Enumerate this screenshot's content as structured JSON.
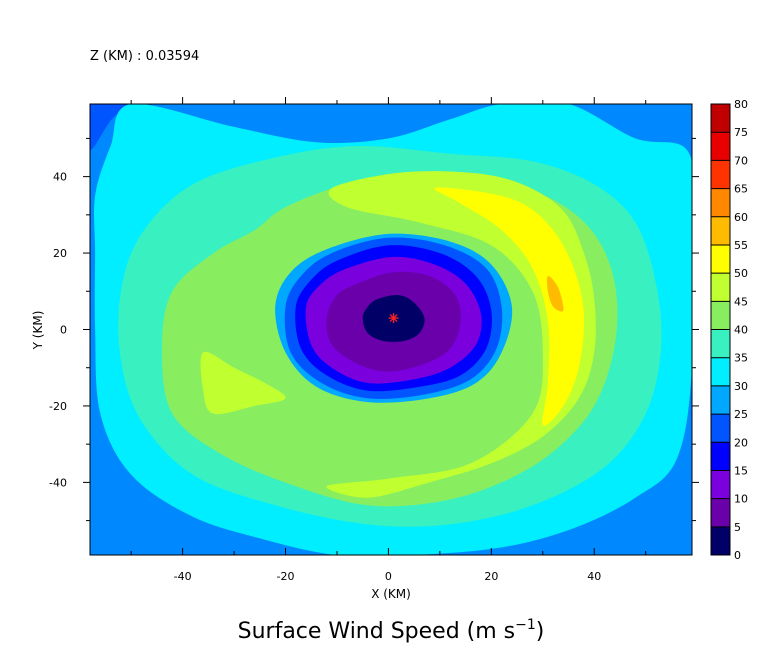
{
  "chart_data": {
    "type": "heatmap",
    "plot_type": "filled contour",
    "title": "Surface Wind Speed (m s",
    "title_superscript": "−1",
    "title_suffix": ")",
    "level_label": "Z (KM) : 0.03594",
    "xlabel": "X (KM)",
    "ylabel": "Y (KM)",
    "xlim": [
      -58,
      59
    ],
    "ylim": [
      -59,
      59
    ],
    "x_ticks": [
      -40,
      -20,
      0,
      20,
      40
    ],
    "y_ticks": [
      -40,
      -20,
      0,
      20,
      40
    ],
    "x_tick_labels": [
      "-40",
      "-20",
      "0",
      "20",
      "40"
    ],
    "y_tick_labels": [
      "-40",
      "-20",
      "0",
      "20",
      "40"
    ],
    "center_marker": {
      "x": 1,
      "y": 3,
      "symbol": "*",
      "color": "#ff2020"
    },
    "colorbar": {
      "levels": [
        0,
        5,
        10,
        15,
        20,
        25,
        30,
        35,
        40,
        45,
        50,
        55,
        60,
        65,
        70,
        75,
        80
      ],
      "labels": [
        "0",
        "5",
        "10",
        "15",
        "20",
        "25",
        "30",
        "35",
        "40",
        "45",
        "50",
        "55",
        "60",
        "65",
        "70",
        "75",
        "80"
      ],
      "colors": [
        "#000066",
        "#6a00aa",
        "#7a00dd",
        "#0000ff",
        "#0055ff",
        "#00a8ff",
        "#00eeff",
        "#38f0c0",
        "#88ee60",
        "#c0ff30",
        "#ffff00",
        "#ffbb00",
        "#ff8800",
        "#ff3300",
        "#e80000",
        "#c00000"
      ]
    },
    "regions": [
      {
        "speed_min": 20,
        "polygon": [
          [
            -58,
            47
          ],
          [
            -53,
            56
          ],
          [
            -46,
            59
          ],
          [
            -58,
            59
          ]
        ]
      },
      {
        "speed_min": 30,
        "polygon": [
          [
            -50,
            59
          ],
          [
            -30,
            53
          ],
          [
            -14,
            49
          ],
          [
            0,
            50
          ],
          [
            12,
            55
          ],
          [
            22,
            59
          ],
          [
            35,
            59
          ],
          [
            48,
            50
          ],
          [
            58,
            47
          ],
          [
            59,
            30
          ],
          [
            59,
            -10
          ],
          [
            56,
            -34
          ],
          [
            48,
            -44
          ],
          [
            36,
            -52
          ],
          [
            22,
            -57
          ],
          [
            5,
            -59
          ],
          [
            -10,
            -59
          ],
          [
            -24,
            -55
          ],
          [
            -38,
            -49
          ],
          [
            -50,
            -38
          ],
          [
            -56,
            -22
          ],
          [
            -57,
            0
          ],
          [
            -57,
            20
          ],
          [
            -57,
            35
          ],
          [
            -54,
            48
          ]
        ]
      },
      {
        "speed_min": 35,
        "polygon": [
          [
            -38,
            38
          ],
          [
            -22,
            45
          ],
          [
            -6,
            48
          ],
          [
            12,
            46
          ],
          [
            28,
            44
          ],
          [
            40,
            38
          ],
          [
            48,
            28
          ],
          [
            52,
            12
          ],
          [
            53,
            -5
          ],
          [
            50,
            -22
          ],
          [
            42,
            -36
          ],
          [
            28,
            -46
          ],
          [
            12,
            -51
          ],
          [
            -4,
            -51
          ],
          [
            -22,
            -46
          ],
          [
            -38,
            -38
          ],
          [
            -48,
            -24
          ],
          [
            -52,
            -8
          ],
          [
            -52,
            10
          ],
          [
            -48,
            25
          ]
        ]
      },
      {
        "speed_min": 40,
        "polygon": [
          [
            -20,
            32
          ],
          [
            -8,
            38
          ],
          [
            6,
            40
          ],
          [
            20,
            39
          ],
          [
            32,
            34
          ],
          [
            40,
            25
          ],
          [
            44,
            12
          ],
          [
            44,
            -4
          ],
          [
            40,
            -20
          ],
          [
            32,
            -32
          ],
          [
            22,
            -40
          ],
          [
            10,
            -45
          ],
          [
            -4,
            -46
          ],
          [
            -18,
            -41
          ],
          [
            -32,
            -33
          ],
          [
            -42,
            -22
          ],
          [
            -44,
            -5
          ],
          [
            -42,
            10
          ],
          [
            -34,
            20
          ],
          [
            -26,
            26
          ]
        ]
      },
      {
        "speed_min": 45,
        "polygon": [
          [
            -11,
            37
          ],
          [
            2,
            41
          ],
          [
            16,
            41
          ],
          [
            26,
            38
          ],
          [
            34,
            31
          ],
          [
            38,
            20
          ],
          [
            40,
            8
          ],
          [
            40,
            -6
          ],
          [
            37,
            -18
          ],
          [
            30,
            -28
          ],
          [
            20,
            -35
          ],
          [
            8,
            -40
          ],
          [
            -4,
            -44
          ],
          [
            -12,
            -41
          ],
          [
            0,
            -39
          ],
          [
            16,
            -35
          ],
          [
            28,
            -22
          ],
          [
            30,
            -6
          ],
          [
            28,
            10
          ],
          [
            20,
            22
          ],
          [
            6,
            28
          ],
          [
            -8,
            32
          ]
        ]
      },
      {
        "speed_min": 45,
        "polygon": [
          [
            -36,
            -6
          ],
          [
            -30,
            -10
          ],
          [
            -24,
            -14
          ],
          [
            -20,
            -18
          ],
          [
            -26,
            -20
          ],
          [
            -34,
            -22
          ],
          [
            -36,
            -16
          ]
        ]
      },
      {
        "speed_min": 50,
        "polygon": [
          [
            9,
            37
          ],
          [
            18,
            36
          ],
          [
            26,
            33
          ],
          [
            32,
            26
          ],
          [
            36,
            16
          ],
          [
            38,
            4
          ],
          [
            37,
            -10
          ],
          [
            34,
            -20
          ],
          [
            30,
            -25
          ],
          [
            31,
            -14
          ],
          [
            31,
            2
          ],
          [
            28,
            16
          ],
          [
            22,
            26
          ],
          [
            14,
            33
          ]
        ]
      },
      {
        "speed_min": 55,
        "polygon": [
          [
            31,
            14
          ],
          [
            33,
            11
          ],
          [
            34,
            5
          ],
          [
            32,
            6
          ],
          [
            31,
            10
          ]
        ]
      },
      {
        "speed_min": 25,
        "polygon": [
          [
            -12,
            21
          ],
          [
            0,
            25
          ],
          [
            12,
            23
          ],
          [
            20,
            17
          ],
          [
            24,
            6
          ],
          [
            22,
            -6
          ],
          [
            17,
            -14
          ],
          [
            8,
            -18
          ],
          [
            -4,
            -19
          ],
          [
            -14,
            -15
          ],
          [
            -20,
            -6
          ],
          [
            -22,
            6
          ],
          [
            -19,
            15
          ]
        ]
      },
      {
        "speed_min": 20,
        "polygon": [
          [
            -11,
            20
          ],
          [
            0,
            24
          ],
          [
            11,
            22
          ],
          [
            19,
            16
          ],
          [
            22,
            6
          ],
          [
            21,
            -5
          ],
          [
            16,
            -13
          ],
          [
            7,
            -17
          ],
          [
            -4,
            -18
          ],
          [
            -13,
            -14
          ],
          [
            -19,
            -6
          ],
          [
            -20,
            6
          ],
          [
            -17,
            14
          ]
        ]
      },
      {
        "speed_min": 15,
        "polygon": [
          [
            -10,
            18
          ],
          [
            0,
            22
          ],
          [
            10,
            20
          ],
          [
            17,
            14
          ],
          [
            20,
            5
          ],
          [
            19,
            -5
          ],
          [
            14,
            -12
          ],
          [
            6,
            -15
          ],
          [
            -4,
            -16
          ],
          [
            -12,
            -12
          ],
          [
            -17,
            -5
          ],
          [
            -18,
            6
          ],
          [
            -15,
            13
          ]
        ]
      },
      {
        "speed_min": 10,
        "polygon": [
          [
            -8,
            16
          ],
          [
            1,
            19
          ],
          [
            9,
            17
          ],
          [
            15,
            12
          ],
          [
            18,
            4
          ],
          [
            17,
            -4
          ],
          [
            12,
            -10
          ],
          [
            5,
            -13
          ],
          [
            -4,
            -14
          ],
          [
            -11,
            -10
          ],
          [
            -15,
            -4
          ],
          [
            -16,
            6
          ],
          [
            -13,
            12
          ]
        ]
      },
      {
        "speed_min": 5,
        "polygon": [
          [
            -6,
            12
          ],
          [
            1,
            15
          ],
          [
            8,
            14
          ],
          [
            13,
            9
          ],
          [
            14,
            2
          ],
          [
            12,
            -5
          ],
          [
            7,
            -9
          ],
          [
            0,
            -11
          ],
          [
            -6,
            -9
          ],
          [
            -11,
            -4
          ],
          [
            -12,
            3
          ],
          [
            -10,
            9
          ]
        ]
      },
      {
        "speed_min": 0,
        "polygon": [
          [
            -2,
            8
          ],
          [
            2,
            9
          ],
          [
            5,
            7
          ],
          [
            7,
            3
          ],
          [
            6,
            -1
          ],
          [
            3,
            -3
          ],
          [
            -1,
            -3
          ],
          [
            -4,
            -1
          ],
          [
            -5,
            3
          ],
          [
            -4,
            6
          ]
        ]
      }
    ]
  }
}
